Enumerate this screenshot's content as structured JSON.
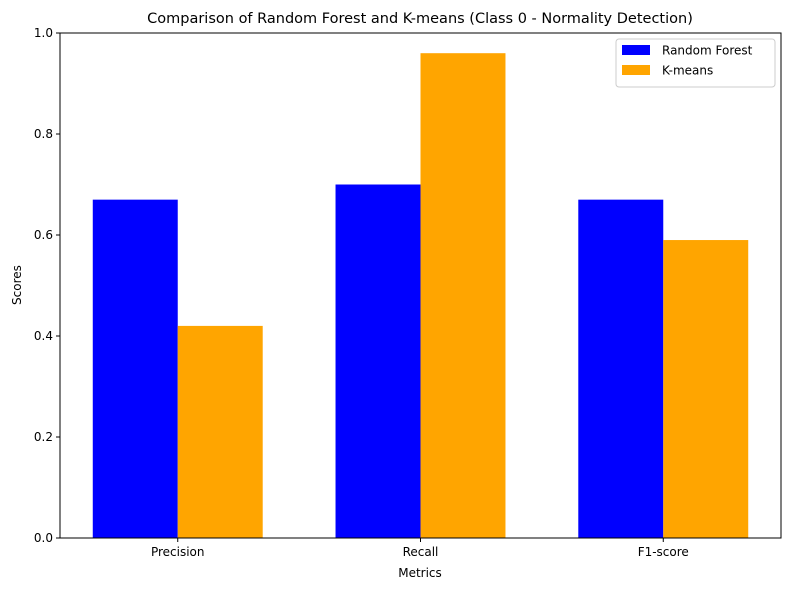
{
  "chart_data": {
    "type": "bar",
    "title": "Comparison of Random Forest and K-means (Class 0 - Normality Detection)",
    "xlabel": "Metrics",
    "ylabel": "Scores",
    "categories": [
      "Precision",
      "Recall",
      "F1-score"
    ],
    "series": [
      {
        "name": "Random Forest",
        "values": [
          0.67,
          0.7,
          0.67
        ],
        "color": "#0000ff"
      },
      {
        "name": "K-means",
        "values": [
          0.42,
          0.96,
          0.59
        ],
        "color": "#ffa500"
      }
    ],
    "ylim": [
      0,
      1.0
    ],
    "yticks": [
      {
        "value": 0.0,
        "label": "0.0"
      },
      {
        "value": 0.2,
        "label": "0.2"
      },
      {
        "value": 0.4,
        "label": "0.4"
      },
      {
        "value": 0.6,
        "label": "0.6"
      },
      {
        "value": 0.8,
        "label": "0.8"
      },
      {
        "value": 1.0,
        "label": "1.0"
      }
    ],
    "grid": false,
    "legend": "top-right"
  }
}
